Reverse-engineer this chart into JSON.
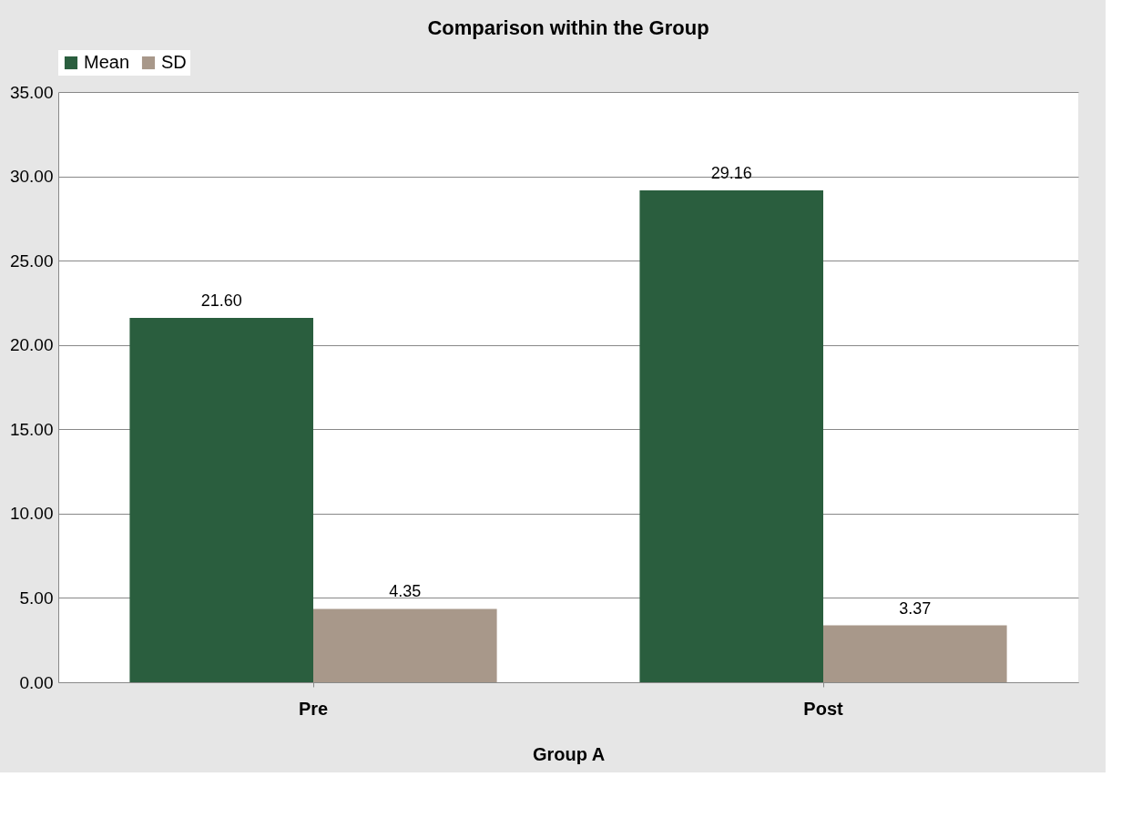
{
  "chart_data": {
    "type": "bar",
    "title": "Comparison within the Group",
    "xlabel": "Group A",
    "categories": [
      "Pre",
      "Post"
    ],
    "series": [
      {
        "name": "Mean",
        "color": "#2a5e3e",
        "values": [
          21.6,
          29.16
        ],
        "value_labels": [
          "21.60",
          "29.16"
        ]
      },
      {
        "name": "SD",
        "color": "#a8988a",
        "values": [
          4.35,
          3.37
        ],
        "value_labels": [
          "4.35",
          "3.37"
        ]
      }
    ],
    "ylim": [
      0,
      35
    ],
    "yticks": [
      {
        "value": 0,
        "label": "0.00"
      },
      {
        "value": 5,
        "label": "5.00"
      },
      {
        "value": 10,
        "label": "10.00"
      },
      {
        "value": 15,
        "label": "15.00"
      },
      {
        "value": 20,
        "label": "20.00"
      },
      {
        "value": 25,
        "label": "25.00"
      },
      {
        "value": 30,
        "label": "30.00"
      },
      {
        "value": 35,
        "label": "35.00"
      }
    ],
    "grid": "y",
    "legend": "top"
  }
}
